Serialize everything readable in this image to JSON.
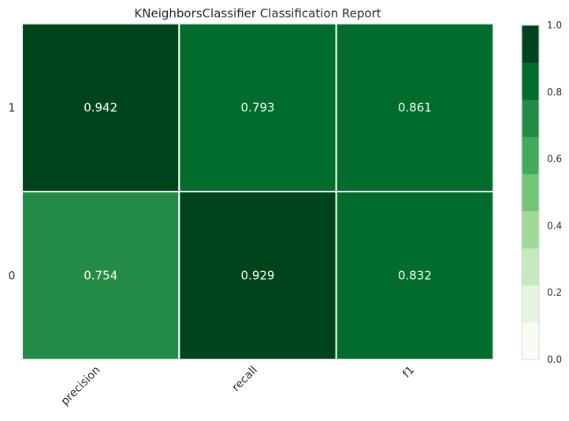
{
  "chart_data": {
    "type": "heatmap",
    "title": "KNeighborsClassifier Classification Report",
    "x_categories": [
      "precision",
      "recall",
      "f1"
    ],
    "y_categories": [
      "1",
      "0"
    ],
    "values": [
      [
        0.942,
        0.793,
        0.861
      ],
      [
        0.754,
        0.929,
        0.832
      ]
    ],
    "value_labels": [
      [
        "0.942",
        "0.793",
        "0.861"
      ],
      [
        "0.754",
        "0.929",
        "0.832"
      ]
    ],
    "colorbar": {
      "range": [
        0.0,
        1.0
      ],
      "tick_labels": [
        "0.0",
        "0.2",
        "0.4",
        "0.6",
        "0.8",
        "1.0"
      ],
      "tick_values": [
        0.0,
        0.2,
        0.4,
        0.6,
        0.8,
        1.0
      ],
      "colors": [
        "#f7fcf5",
        "#e5f5e0",
        "#c7e9c0",
        "#a1d99b",
        "#74c476",
        "#41ab5d",
        "#238b45",
        "#006d2c",
        "#00441b"
      ]
    },
    "grid": false
  }
}
